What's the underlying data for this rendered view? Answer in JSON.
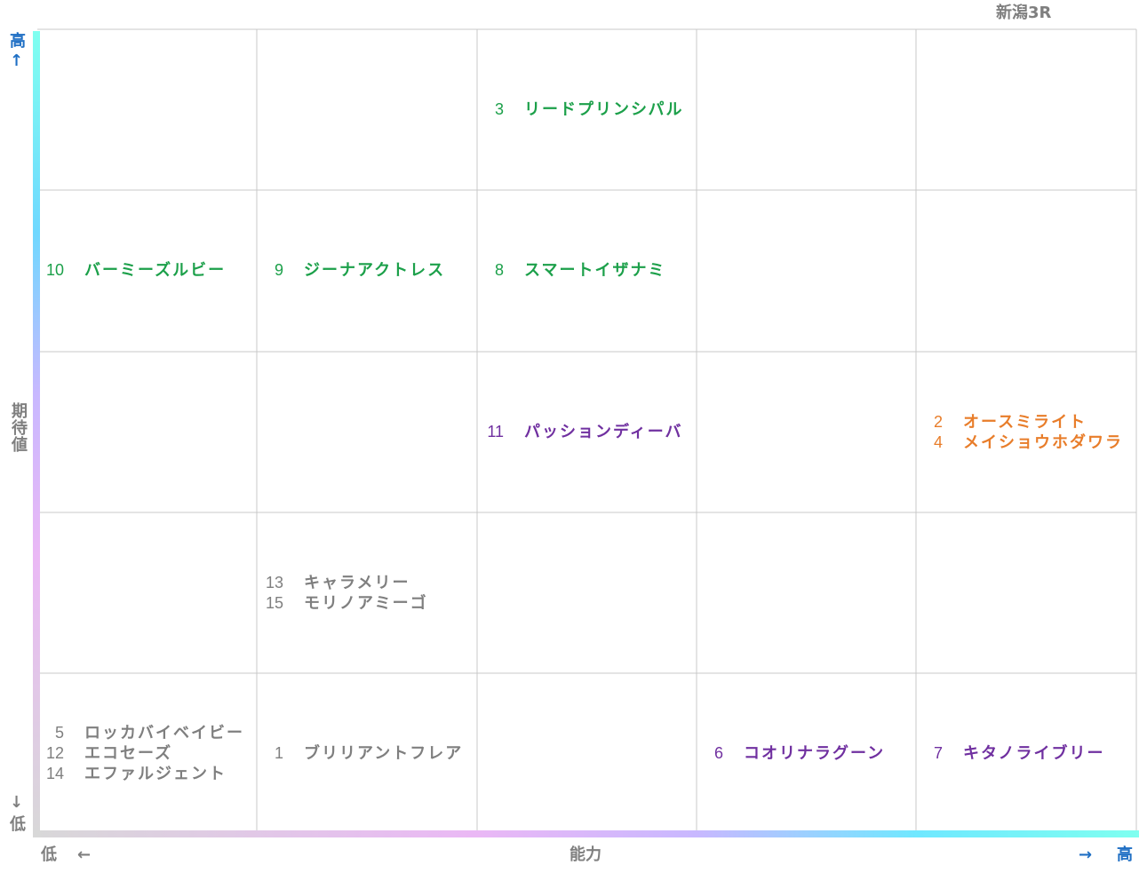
{
  "title": "新潟3R",
  "y_axis": {
    "top": "高",
    "top_arrow": "↑",
    "label": "期待値",
    "bottom_arrow": "↓",
    "bottom": "低"
  },
  "x_axis": {
    "left": "低",
    "left_arrow": "←",
    "label": "能力",
    "right_arrow": "→",
    "right": "高"
  },
  "grid": {
    "rows": [
      [
        [],
        [],
        [
          {
            "number": 3,
            "name": "リードプリンシパル",
            "color": "#1ca04a"
          }
        ],
        [],
        []
      ],
      [
        [
          {
            "number": 10,
            "name": "バーミーズルビー",
            "color": "#1ca04a"
          }
        ],
        [
          {
            "number": 9,
            "name": "ジーナアクトレス",
            "color": "#1ca04a"
          }
        ],
        [
          {
            "number": 8,
            "name": "スマートイザナミ",
            "color": "#1ca04a"
          }
        ],
        [],
        []
      ],
      [
        [],
        [],
        [
          {
            "number": 11,
            "name": "パッションディーバ",
            "color": "#7030a0"
          }
        ],
        [],
        [
          {
            "number": 2,
            "name": "オースミライト",
            "color": "#e87d2a"
          },
          {
            "number": 4,
            "name": "メイショウホダワラ",
            "color": "#e87d2a"
          }
        ]
      ],
      [
        [],
        [
          {
            "number": 13,
            "name": "キャラメリー",
            "color": "#7f7f7f"
          },
          {
            "number": 15,
            "name": "モリノアミーゴ",
            "color": "#7f7f7f"
          }
        ],
        [],
        [],
        []
      ],
      [
        [
          {
            "number": 5,
            "name": "ロッカバイベイビー",
            "color": "#7f7f7f"
          },
          {
            "number": 12,
            "name": "エコセーズ",
            "color": "#7f7f7f"
          },
          {
            "number": 14,
            "name": "エファルジェント",
            "color": "#7f7f7f"
          }
        ],
        [
          {
            "number": 1,
            "name": "ブリリアントフレア",
            "color": "#7f7f7f"
          }
        ],
        [],
        [
          {
            "number": 6,
            "name": "コオリナラグーン",
            "color": "#7030a0"
          }
        ],
        [
          {
            "number": 7,
            "name": "キタノライブリー",
            "color": "#7030a0"
          }
        ]
      ]
    ]
  }
}
